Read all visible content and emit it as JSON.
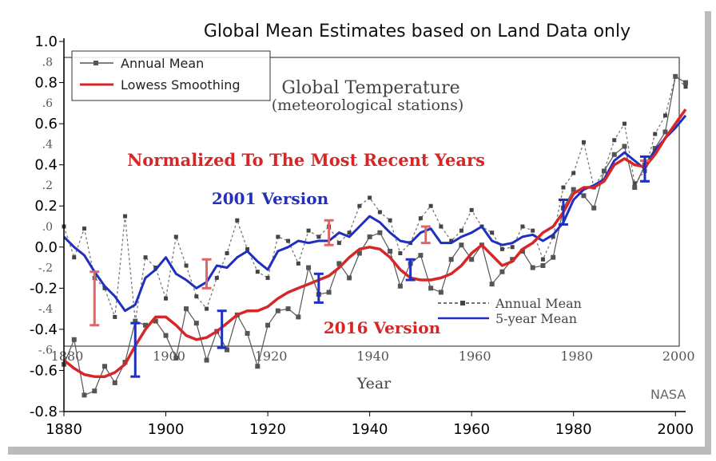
{
  "chart_data": {
    "type": "line",
    "title": "Global Mean Estimates based on Land Data only",
    "xlabel": "Year",
    "xlim": [
      1880,
      2002
    ],
    "ylim": [
      -0.8,
      1.0
    ],
    "x_ticks": [
      "1880",
      "1900",
      "1920",
      "1940",
      "1960",
      "1980",
      "2000"
    ],
    "y_ticks": [
      "-0.8",
      "-0.6",
      "-0.4",
      "-0.2",
      "0.0",
      "0.2",
      "0.4",
      "0.6",
      "0.8",
      "1.0"
    ],
    "inner_x_ticks": [
      "1880",
      "1900",
      "1920",
      "1940",
      "1960",
      "1980",
      "2000"
    ],
    "inner_y_ticks": [
      "-.6",
      "-.4",
      "-.2",
      ".0",
      ".2",
      ".4",
      ".6",
      ".8"
    ],
    "inner_title_line1": "Global Temperature",
    "inner_title_line2": "(meteorological stations)",
    "inner_xlabel": "Year",
    "inner_legend": [
      "Annual Mean",
      "5-year Mean"
    ],
    "legend": [
      "Annual Mean",
      "Lowess Smoothing"
    ],
    "annotation_main": "Normalized To The Most Recent Years",
    "annotation_2001": "2001 Version",
    "annotation_2016": "2016 Version",
    "credit": "NASA",
    "colors": {
      "v2016": "#d62728",
      "v2001": "#1f2fbf",
      "annual_new": "#555555",
      "annual_old": "#777777",
      "err_pink": "#e06666",
      "err_blue": "#1f2fbf"
    },
    "series": [
      {
        "name": "Lowess Smoothing",
        "x": [
          1880,
          1882,
          1884,
          1886,
          1888,
          1890,
          1892,
          1894,
          1896,
          1898,
          1900,
          1902,
          1904,
          1906,
          1908,
          1910,
          1912,
          1914,
          1916,
          1918,
          1920,
          1922,
          1924,
          1926,
          1928,
          1930,
          1932,
          1934,
          1936,
          1938,
          1940,
          1942,
          1944,
          1946,
          1948,
          1950,
          1952,
          1954,
          1956,
          1958,
          1960,
          1962,
          1964,
          1966,
          1968,
          1970,
          1972,
          1974,
          1976,
          1978,
          1980,
          1982,
          1984,
          1986,
          1988,
          1990,
          1992,
          1994,
          1996,
          1998,
          2000,
          2002
        ],
        "values": [
          -0.55,
          -0.59,
          -0.62,
          -0.63,
          -0.63,
          -0.61,
          -0.57,
          -0.48,
          -0.4,
          -0.34,
          -0.34,
          -0.38,
          -0.43,
          -0.45,
          -0.44,
          -0.41,
          -0.37,
          -0.33,
          -0.31,
          -0.31,
          -0.29,
          -0.25,
          -0.22,
          -0.2,
          -0.18,
          -0.16,
          -0.14,
          -0.1,
          -0.05,
          -0.01,
          0.0,
          -0.01,
          -0.05,
          -0.11,
          -0.15,
          -0.16,
          -0.16,
          -0.15,
          -0.13,
          -0.09,
          -0.03,
          0.01,
          -0.04,
          -0.09,
          -0.07,
          -0.01,
          0.02,
          0.07,
          0.1,
          0.17,
          0.26,
          0.29,
          0.29,
          0.32,
          0.4,
          0.43,
          0.4,
          0.39,
          0.45,
          0.53,
          0.6,
          0.67
        ]
      },
      {
        "name": "2001 Version 5-year Mean",
        "x": [
          1880,
          1882,
          1884,
          1886,
          1888,
          1890,
          1892,
          1894,
          1896,
          1898,
          1900,
          1902,
          1904,
          1906,
          1908,
          1910,
          1912,
          1914,
          1916,
          1918,
          1920,
          1922,
          1924,
          1926,
          1928,
          1930,
          1932,
          1934,
          1936,
          1938,
          1940,
          1942,
          1944,
          1946,
          1948,
          1950,
          1952,
          1954,
          1956,
          1958,
          1960,
          1962,
          1964,
          1966,
          1968,
          1970,
          1972,
          1974,
          1976,
          1978,
          1980,
          1982,
          1984,
          1986,
          1988,
          1990,
          1992,
          1994,
          1996,
          1998,
          2000,
          2002
        ],
        "values": [
          0.05,
          0.0,
          -0.04,
          -0.12,
          -0.19,
          -0.24,
          -0.31,
          -0.28,
          -0.15,
          -0.11,
          -0.05,
          -0.13,
          -0.16,
          -0.2,
          -0.17,
          -0.09,
          -0.1,
          -0.05,
          -0.02,
          -0.07,
          -0.11,
          -0.02,
          0.0,
          0.03,
          0.02,
          0.03,
          0.03,
          0.07,
          0.05,
          0.1,
          0.15,
          0.12,
          0.07,
          0.03,
          0.02,
          0.07,
          0.09,
          0.02,
          0.02,
          0.05,
          0.07,
          0.1,
          0.03,
          0.01,
          0.02,
          0.05,
          0.06,
          0.03,
          0.06,
          0.12,
          0.23,
          0.28,
          0.3,
          0.33,
          0.42,
          0.46,
          0.42,
          0.38,
          0.47,
          0.53,
          0.58,
          0.64
        ]
      },
      {
        "name": "Annual Mean",
        "x": [
          1880,
          1882,
          1884,
          1886,
          1888,
          1890,
          1892,
          1894,
          1896,
          1898,
          1900,
          1902,
          1904,
          1906,
          1908,
          1910,
          1912,
          1914,
          1916,
          1918,
          1920,
          1922,
          1924,
          1926,
          1928,
          1930,
          1932,
          1934,
          1936,
          1938,
          1940,
          1942,
          1944,
          1946,
          1948,
          1950,
          1952,
          1954,
          1956,
          1958,
          1960,
          1962,
          1964,
          1966,
          1968,
          1970,
          1972,
          1974,
          1976,
          1978,
          1980,
          1982,
          1984,
          1986,
          1988,
          1990,
          1992,
          1994,
          1996,
          1998,
          2000,
          2002
        ],
        "values": [
          -0.57,
          -0.45,
          -0.72,
          -0.7,
          -0.58,
          -0.66,
          -0.56,
          -0.36,
          -0.38,
          -0.36,
          -0.43,
          -0.54,
          -0.3,
          -0.37,
          -0.55,
          -0.41,
          -0.5,
          -0.33,
          -0.42,
          -0.58,
          -0.38,
          -0.31,
          -0.3,
          -0.34,
          -0.1,
          -0.23,
          -0.22,
          -0.08,
          -0.15,
          -0.03,
          0.05,
          0.07,
          -0.02,
          -0.19,
          -0.08,
          -0.04,
          -0.2,
          -0.22,
          -0.06,
          0.01,
          -0.06,
          0.01,
          -0.18,
          -0.12,
          -0.06,
          -0.02,
          -0.1,
          -0.09,
          -0.05,
          0.19,
          0.28,
          0.25,
          0.19,
          0.37,
          0.45,
          0.49,
          0.29,
          0.4,
          0.48,
          0.56,
          0.83,
          0.8
        ]
      },
      {
        "name": "2001 Version Annual Mean",
        "x": [
          1880,
          1882,
          1884,
          1886,
          1888,
          1890,
          1892,
          1894,
          1896,
          1898,
          1900,
          1902,
          1904,
          1906,
          1908,
          1910,
          1912,
          1914,
          1916,
          1918,
          1920,
          1922,
          1924,
          1926,
          1928,
          1930,
          1932,
          1934,
          1936,
          1938,
          1940,
          1942,
          1944,
          1946,
          1948,
          1950,
          1952,
          1954,
          1956,
          1958,
          1960,
          1962,
          1964,
          1966,
          1968,
          1970,
          1972,
          1974,
          1976,
          1978,
          1980,
          1982,
          1984,
          1986,
          1988,
          1990,
          1992,
          1994,
          1996,
          1998,
          2000,
          2002
        ],
        "values": [
          0.1,
          -0.05,
          0.09,
          -0.15,
          -0.2,
          -0.34,
          0.15,
          -0.36,
          -0.05,
          -0.1,
          -0.25,
          0.05,
          -0.09,
          -0.24,
          -0.3,
          -0.15,
          -0.03,
          0.13,
          -0.01,
          -0.12,
          -0.15,
          0.05,
          0.03,
          -0.08,
          0.08,
          0.05,
          0.1,
          0.02,
          0.07,
          0.2,
          0.24,
          0.17,
          0.13,
          -0.03,
          0.02,
          0.14,
          0.2,
          0.1,
          0.03,
          0.08,
          0.18,
          0.1,
          0.07,
          -0.01,
          0.0,
          0.1,
          0.08,
          -0.06,
          0.05,
          0.29,
          0.36,
          0.51,
          0.29,
          0.37,
          0.52,
          0.6,
          0.31,
          0.37,
          0.55,
          0.64,
          0.83,
          0.78
        ]
      }
    ],
    "error_bars": [
      {
        "version": "2001",
        "year": 1886,
        "center": -0.25,
        "half": 0.13
      },
      {
        "version": "2001",
        "year": 1908,
        "center": -0.13,
        "half": 0.07
      },
      {
        "version": "2001",
        "year": 1932,
        "center": 0.07,
        "half": 0.06
      },
      {
        "version": "2001",
        "year": 1951,
        "center": 0.06,
        "half": 0.04
      },
      {
        "version": "2001",
        "year": 1994,
        "center": 0.37,
        "half": 0.05
      },
      {
        "version": "2016",
        "year": 1894,
        "center": -0.5,
        "half": 0.13
      },
      {
        "version": "2016",
        "year": 1911,
        "center": -0.4,
        "half": 0.09
      },
      {
        "version": "2016",
        "year": 1930,
        "center": -0.2,
        "half": 0.07
      },
      {
        "version": "2016",
        "year": 1948,
        "center": -0.11,
        "half": 0.05
      },
      {
        "version": "2016",
        "year": 1978,
        "center": 0.17,
        "half": 0.06
      },
      {
        "version": "2016",
        "year": 1994,
        "center": 0.38,
        "half": 0.06
      }
    ]
  }
}
